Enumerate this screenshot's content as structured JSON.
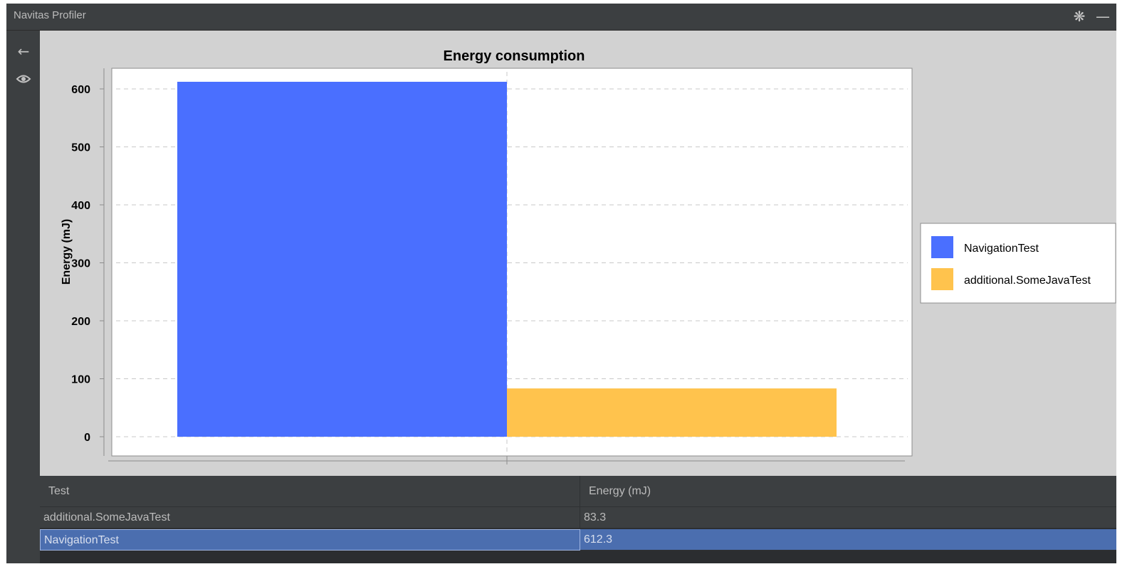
{
  "window": {
    "title": "Navitas Profiler"
  },
  "titlebar_icons": [
    "gear-icon",
    "minimize-icon"
  ],
  "toolbar": {
    "icons": [
      "back-arrow-icon",
      "eye-icon"
    ]
  },
  "chart_data": {
    "type": "bar",
    "title": "Energy consumption",
    "xlabel": "",
    "ylabel": "Energy (mJ)",
    "ylim": [
      0,
      637
    ],
    "yticks": [
      0,
      100,
      200,
      300,
      400,
      500,
      600
    ],
    "grid": true,
    "legend_position": "right",
    "series": [
      {
        "name": "NavigationTest",
        "values": [
          612.3
        ],
        "color": "#4a6fff"
      },
      {
        "name": "additional.SomeJavaTest",
        "values": [
          83.3
        ],
        "color": "#ffc34d"
      }
    ]
  },
  "table": {
    "columns": [
      "Test",
      "Energy (mJ)"
    ],
    "rows": [
      {
        "test": "additional.SomeJavaTest",
        "energy": "83.3",
        "selected": false
      },
      {
        "test": "NavigationTest",
        "energy": "612.3",
        "selected": true
      }
    ]
  },
  "colors": {
    "frame_bg": "#3c3f41",
    "chart_bg": "#d2d2d2",
    "selection": "#4b6eaf"
  }
}
